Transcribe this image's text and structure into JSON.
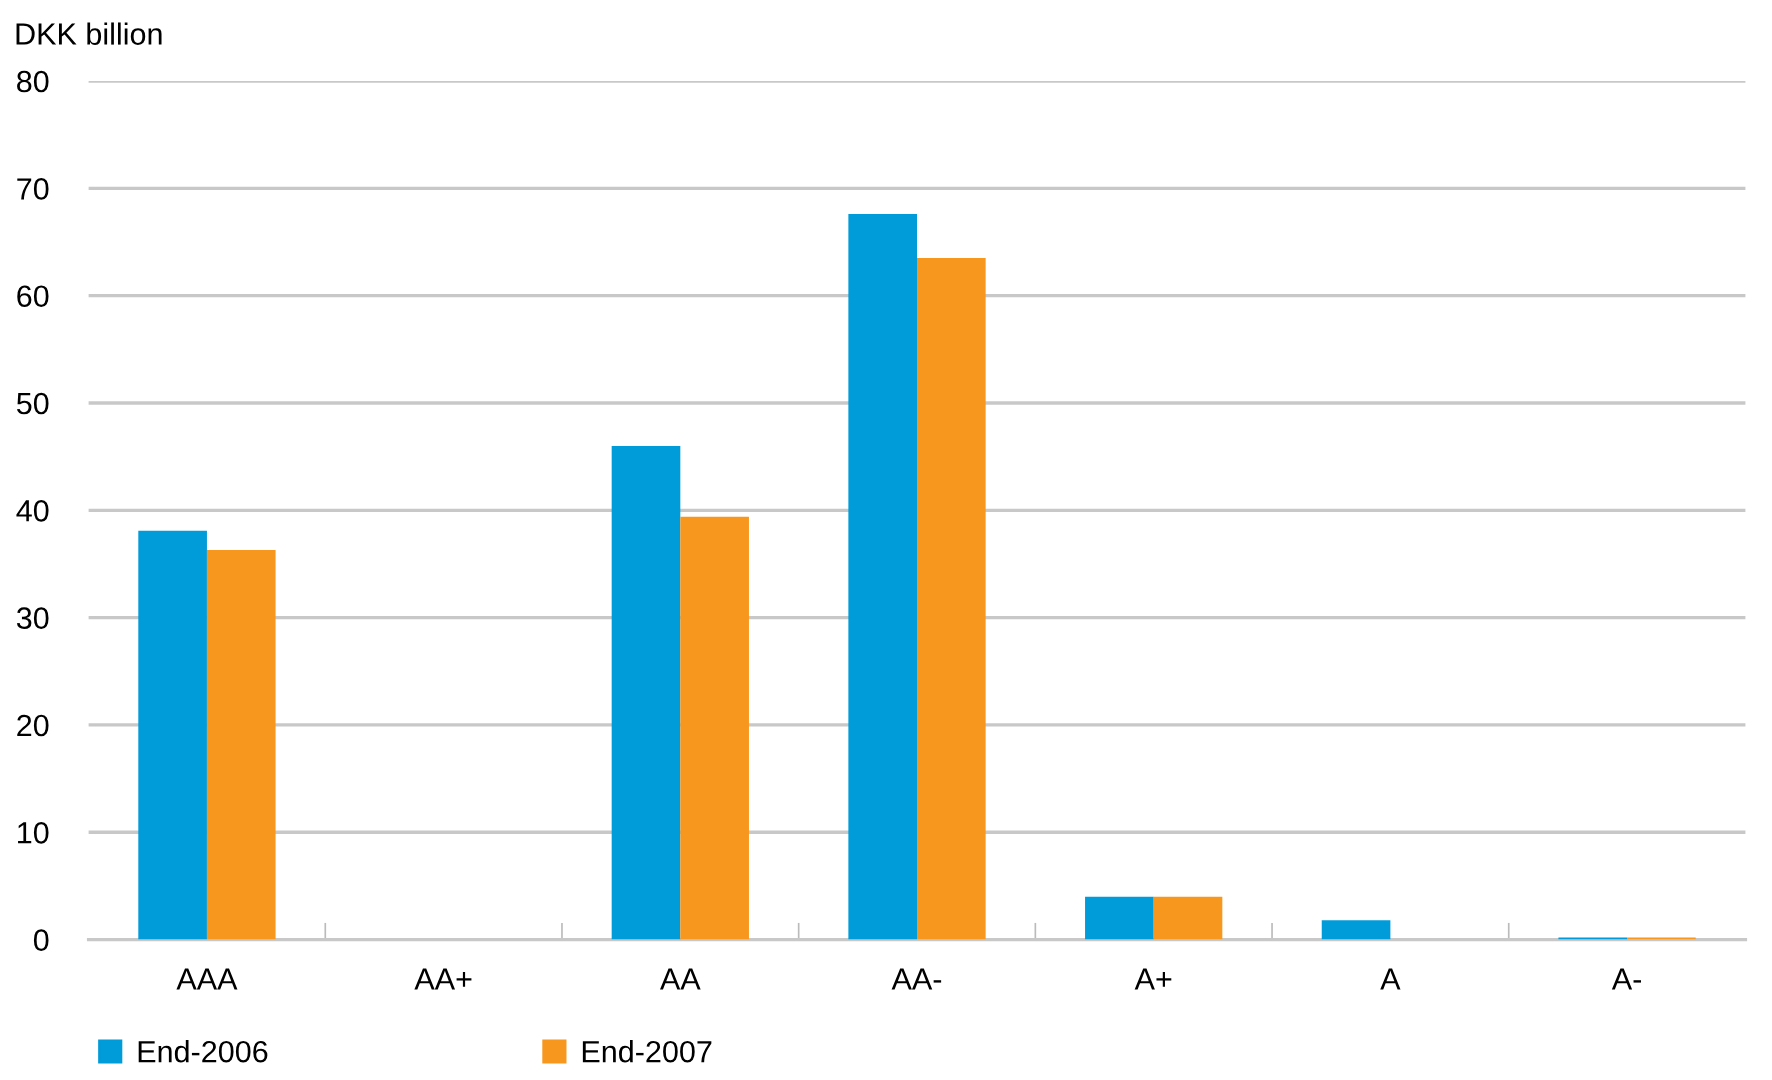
{
  "chart_data": {
    "type": "bar",
    "ylabel": "DKK billion",
    "categories": [
      "AAA",
      "AA+",
      "AA",
      "AA-",
      "A+",
      "A",
      "A-"
    ],
    "series": [
      {
        "name": "End-2006",
        "color": "#009bd9",
        "values": [
          38.1,
          0,
          46.0,
          67.6,
          4.0,
          1.8,
          0.2
        ]
      },
      {
        "name": "End-2007",
        "color": "#f7971e",
        "values": [
          36.3,
          0,
          39.4,
          63.5,
          4.0,
          0,
          0.2
        ]
      }
    ],
    "ylim": [
      0,
      80
    ],
    "yticks": [
      0,
      10,
      20,
      30,
      40,
      50,
      60,
      70,
      80
    ],
    "grid": "y",
    "legend": "bottom left"
  }
}
